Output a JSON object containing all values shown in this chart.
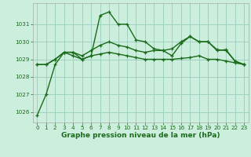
{
  "title": "Graphe pression niveau de la mer (hPa)",
  "background_color": "#cceedd",
  "grid_color": "#99ccbb",
  "line_color": "#1a6b1a",
  "series": [
    [
      1025.8,
      1027.0,
      1028.7,
      1029.4,
      1029.4,
      1029.0,
      1029.2,
      1031.5,
      1031.7,
      1031.0,
      1031.0,
      1030.1,
      1030.0,
      1029.6,
      1029.5,
      1029.2,
      1029.9,
      1030.3,
      1030.0,
      1030.0,
      1029.5,
      1029.55,
      1028.9,
      1028.7
    ],
    [
      1028.7,
      1028.7,
      1029.0,
      1029.4,
      1029.2,
      1029.0,
      1029.2,
      1029.3,
      1029.4,
      1029.3,
      1029.2,
      1029.1,
      1029.0,
      1029.0,
      1029.0,
      1029.0,
      1029.05,
      1029.1,
      1029.2,
      1029.0,
      1029.0,
      1028.9,
      1028.8,
      1028.7
    ],
    [
      1028.7,
      1028.7,
      1029.0,
      1029.4,
      1029.4,
      1029.2,
      1029.5,
      1029.8,
      1030.0,
      1029.8,
      1029.7,
      1029.5,
      1029.4,
      1029.5,
      1029.5,
      1029.6,
      1030.0,
      1030.3,
      1030.0,
      1030.0,
      1029.55,
      1029.5,
      1028.9,
      1028.7
    ]
  ],
  "xlim": [
    -0.5,
    23.5
  ],
  "ylim": [
    1025.4,
    1032.2
  ],
  "yticks": [
    1026,
    1027,
    1028,
    1029,
    1030,
    1031
  ],
  "xticks": [
    0,
    1,
    2,
    3,
    4,
    5,
    6,
    7,
    8,
    9,
    10,
    11,
    12,
    13,
    14,
    15,
    16,
    17,
    18,
    19,
    20,
    21,
    22,
    23
  ],
  "marker": "+",
  "tick_color": "#1a6b1a",
  "label_fontsize": 6.0,
  "tick_fontsize": 5.2,
  "xlabel_fontsize": 6.5,
  "linewidth": 1.0,
  "markersize": 3.0
}
